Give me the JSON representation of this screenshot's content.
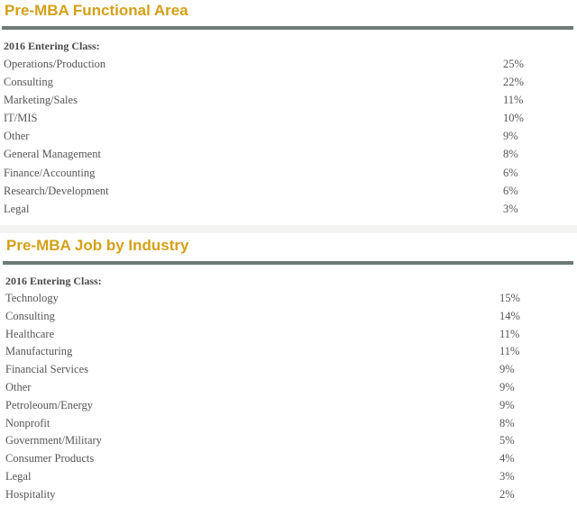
{
  "sections": [
    {
      "title": "Pre-MBA Functional Area",
      "class_label": "2016 Entering Class:",
      "rows": [
        {
          "label": "Operations/Production",
          "value": "25%"
        },
        {
          "label": "Consulting",
          "value": "22%"
        },
        {
          "label": "Marketing/Sales",
          "value": "11%"
        },
        {
          "label": "IT/MIS",
          "value": "10%"
        },
        {
          "label": "Other",
          "value": "9%"
        },
        {
          "label": "General Management",
          "value": "8%"
        },
        {
          "label": "Finance/Accounting",
          "value": "6%"
        },
        {
          "label": "Research/Development",
          "value": "6%"
        },
        {
          "label": "Legal",
          "value": "3%"
        }
      ]
    },
    {
      "title": "Pre-MBA Job by Industry",
      "class_label": "2016 Entering Class:",
      "rows": [
        {
          "label": "Technology",
          "value": "15%"
        },
        {
          "label": "Consulting",
          "value": "14%"
        },
        {
          "label": "Healthcare",
          "value": "11%"
        },
        {
          "label": "Manufacturing",
          "value": "11%"
        },
        {
          "label": "Financial Services",
          "value": "9%"
        },
        {
          "label": "Other",
          "value": "9%"
        },
        {
          "label": "Petroleoum/Energy",
          "value": "9%"
        },
        {
          "label": "Nonprofit",
          "value": "8%"
        },
        {
          "label": "Government/Military",
          "value": "5%"
        },
        {
          "label": "Consumer Products",
          "value": "4%"
        },
        {
          "label": "Legal",
          "value": "3%"
        },
        {
          "label": "Hospitality",
          "value": "2%"
        }
      ]
    }
  ],
  "colors": {
    "title": "#d4a017",
    "rule": "#6e7a74",
    "text": "#555555"
  }
}
